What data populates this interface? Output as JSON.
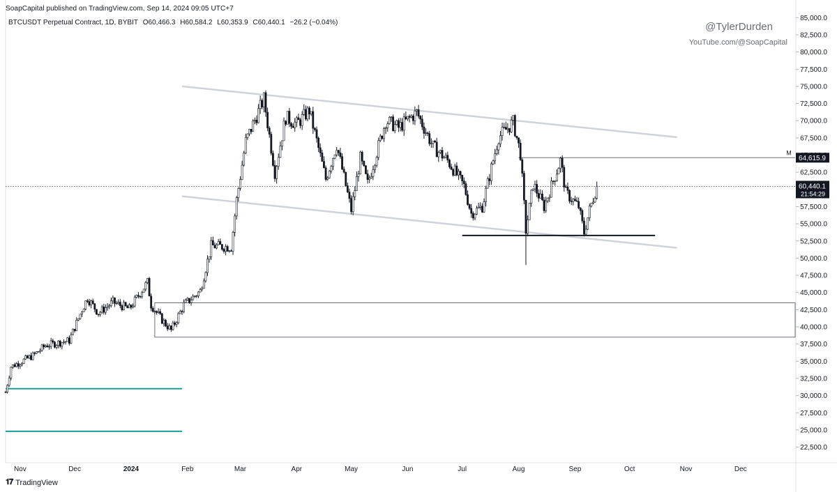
{
  "header": {
    "published": "SoapCapital published on TradingView.com, Sep 14, 2024 09:05 UTC+7",
    "symbol": "BTCUSDT Perpetual Contract, 1D, BYBIT",
    "open": "O60,466.3",
    "high": "H60,584.2",
    "low": "L60,353.9",
    "close": "C60,440.1",
    "change": "−26.2 (−0.04%)"
  },
  "watermark": {
    "handle": "@TylerDurden",
    "youtube": "YouTube.com/@SoapCapital"
  },
  "footer": {
    "brand": "TradingView"
  },
  "chart_data": {
    "type": "candlestick",
    "y_axis": {
      "min": 21000,
      "max": 86000,
      "ticks": [
        85000,
        82500,
        80000,
        77500,
        75000,
        72500,
        70000,
        67500,
        65000,
        62500,
        60000,
        57500,
        55000,
        52500,
        50000,
        47500,
        45000,
        42500,
        40000,
        37500,
        35000,
        32500,
        30000,
        27500,
        25000,
        22500
      ],
      "tick_labels": [
        "85,000.0",
        "82,500.0",
        "80,000.0",
        "77,500.0",
        "75,000.0",
        "72,500.0",
        "70,000.0",
        "67,500.0",
        "65,000.0",
        "62,500.0",
        "60,000.0",
        "57,500.0",
        "55,000.0",
        "52,500.0",
        "50,000.0",
        "47,500.0",
        "45,000.0",
        "42,500.0",
        "40,000.0",
        "37,500.0",
        "35,000.0",
        "32,500.0",
        "30,000.0",
        "27,500.0",
        "25,000.0",
        "22,500.0"
      ]
    },
    "x_axis": {
      "start": "2023-10-24",
      "end": "2024-12-31",
      "labels": [
        {
          "date": "2023-11-01",
          "text": "Nov"
        },
        {
          "date": "2023-12-01",
          "text": "Dec"
        },
        {
          "date": "2024-01-01",
          "text": "2024",
          "bold": true
        },
        {
          "date": "2024-02-01",
          "text": "Feb"
        },
        {
          "date": "2024-03-01",
          "text": "Mar"
        },
        {
          "date": "2024-04-01",
          "text": "Apr"
        },
        {
          "date": "2024-05-01",
          "text": "May"
        },
        {
          "date": "2024-06-01",
          "text": "Jun"
        },
        {
          "date": "2024-07-01",
          "text": "Jul"
        },
        {
          "date": "2024-08-01",
          "text": "Aug"
        },
        {
          "date": "2024-09-01",
          "text": "Sep"
        },
        {
          "date": "2024-10-01",
          "text": "Oct"
        },
        {
          "date": "2024-11-01",
          "text": "Nov"
        },
        {
          "date": "2024-12-01",
          "text": "Dec"
        }
      ]
    },
    "price_path": [
      [
        "2023-10-24",
        30500
      ],
      [
        "2023-10-27",
        34200
      ],
      [
        "2023-11-08",
        35800
      ],
      [
        "2023-11-15",
        37300
      ],
      [
        "2023-11-28",
        38000
      ],
      [
        "2023-12-05",
        42500
      ],
      [
        "2023-12-08",
        44200
      ],
      [
        "2023-12-14",
        42000
      ],
      [
        "2023-12-22",
        43600
      ],
      [
        "2023-12-31",
        42600
      ],
      [
        "2024-01-10",
        46500
      ],
      [
        "2024-01-12",
        43200
      ],
      [
        "2024-01-18",
        41000
      ],
      [
        "2024-01-23",
        39500
      ],
      [
        "2024-01-30",
        43200
      ],
      [
        "2024-02-08",
        45200
      ],
      [
        "2024-02-14",
        51800
      ],
      [
        "2024-02-25",
        51600
      ],
      [
        "2024-02-28",
        58500
      ],
      [
        "2024-03-04",
        67000
      ],
      [
        "2024-03-14",
        73200
      ],
      [
        "2024-03-20",
        62500
      ],
      [
        "2024-03-26",
        70500
      ],
      [
        "2024-04-01",
        69500
      ],
      [
        "2024-04-08",
        71500
      ],
      [
        "2024-04-17",
        61500
      ],
      [
        "2024-04-23",
        66500
      ],
      [
        "2024-05-01",
        57000
      ],
      [
        "2024-05-06",
        64500
      ],
      [
        "2024-05-10",
        60800
      ],
      [
        "2024-05-20",
        70000
      ],
      [
        "2024-05-27",
        69000
      ],
      [
        "2024-06-06",
        71200
      ],
      [
        "2024-06-15",
        66200
      ],
      [
        "2024-06-23",
        64200
      ],
      [
        "2024-07-02",
        60500
      ],
      [
        "2024-07-06",
        56500
      ],
      [
        "2024-07-12",
        57500
      ],
      [
        "2024-07-21",
        67600
      ],
      [
        "2024-07-29",
        69800
      ],
      [
        "2024-08-02",
        65200
      ],
      [
        "2024-08-05",
        54000
      ],
      [
        "2024-08-09",
        60800
      ],
      [
        "2024-08-15",
        57500
      ],
      [
        "2024-08-24",
        64200
      ],
      [
        "2024-08-27",
        59500
      ],
      [
        "2024-09-03",
        57500
      ],
      [
        "2024-09-06",
        53700
      ],
      [
        "2024-09-09",
        57000
      ],
      [
        "2024-09-13",
        60440
      ]
    ],
    "wicks": [
      {
        "date": "2024-08-05",
        "low": 49000,
        "high": 58300
      },
      {
        "date": "2024-03-14",
        "high": 73800
      },
      {
        "date": "2024-07-29",
        "high": 70100
      }
    ],
    "last_price": {
      "value": 60440.1,
      "label": "60,440.1",
      "countdown": "21:54:29"
    },
    "annotations": {
      "channel_upper": {
        "from": [
          "2024-01-29",
          75000
        ],
        "to": [
          "2024-10-27",
          67600
        ]
      },
      "channel_lower": {
        "from": [
          "2024-01-29",
          59000
        ],
        "to": [
          "2024-10-27",
          51500
        ]
      },
      "support_line": {
        "from": [
          "2024-07-01",
          53300
        ],
        "to": [
          "2024-10-15",
          53300
        ]
      },
      "resistance_line": {
        "from": [
          "2024-08-01",
          64615.9
        ],
        "to": [
          "2024-12-31",
          64615.9
        ],
        "label": "64,615.9",
        "marker": "M"
      },
      "range_box": {
        "from": "2024-01-14",
        "to": "2024-12-31",
        "top": 43500,
        "bottom": 38500
      },
      "teal_lines": [
        {
          "from": "2023-10-24",
          "to": "2024-01-29",
          "price": 31000
        },
        {
          "from": "2023-10-24",
          "to": "2024-01-29",
          "price": 24800
        }
      ],
      "colors": {
        "teal": "#1a9e9a",
        "channel": "#cfd2db",
        "support": "#131722",
        "box": "#6b6e78",
        "candle": "#131722"
      }
    }
  }
}
